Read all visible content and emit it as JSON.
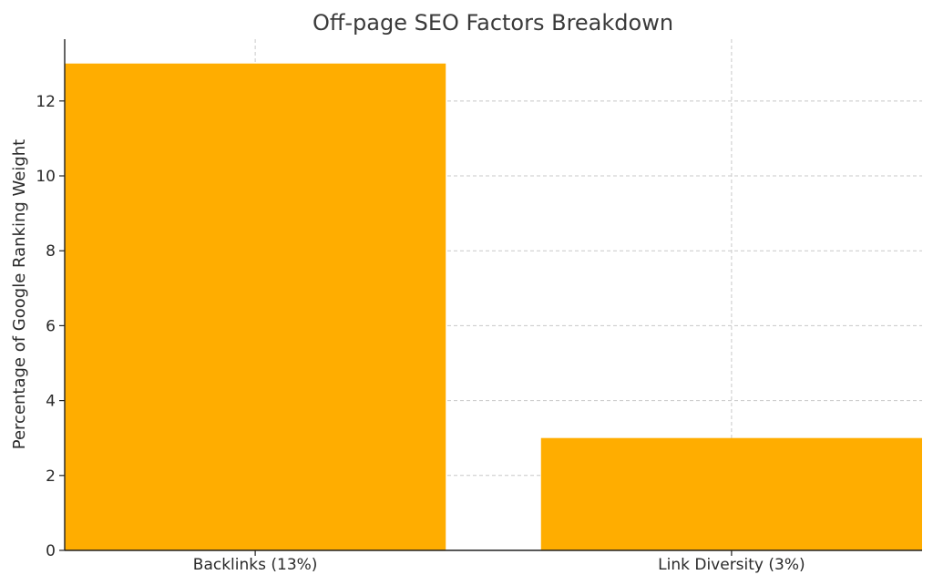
{
  "chart_data": {
    "type": "bar",
    "title": "Off-page SEO Factors Breakdown",
    "xlabel": "",
    "ylabel": "Percentage of Google Ranking Weight",
    "categories": [
      "Backlinks (13%)",
      "Link Diversity (3%)"
    ],
    "values": [
      13,
      3
    ],
    "ylim": [
      0,
      13.65
    ],
    "yticks": [
      0,
      2,
      4,
      6,
      8,
      10,
      12
    ],
    "grid": true,
    "bar_color": "#FFAD00",
    "legend": "none"
  }
}
